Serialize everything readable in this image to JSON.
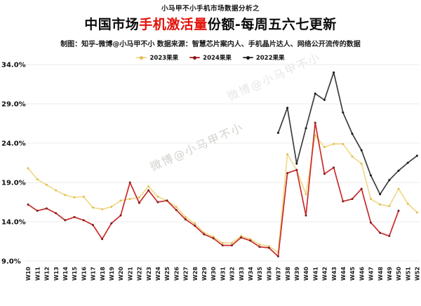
{
  "header": {
    "kicker": "小马甲不小手机市场数据分析之",
    "title_prefix": "中国市场",
    "title_highlight": "手机激活量",
    "title_suffix": "份额-每周五六七更新",
    "subtitle": "制图：知乎-微博@小马甲不小  数据来源：智慧芯片案内人、手机晶片达人、网络公开流传的数据"
  },
  "watermark": {
    "text": "微博@小马甲不小"
  },
  "chart_data": {
    "type": "line",
    "title": "中国市场手机激活量份额-每周五六七更新",
    "xlabel": "",
    "ylabel": "",
    "ylim": [
      9,
      34
    ],
    "grid": true,
    "legend_position": "top",
    "x_tick_rotation": 90,
    "y_ticks": [
      {
        "value": 9,
        "label": "9.0%"
      },
      {
        "value": 14,
        "label": "14.0%"
      },
      {
        "value": 19,
        "label": "19.0%"
      },
      {
        "value": 24,
        "label": "24.0%"
      },
      {
        "value": 29,
        "label": "29.0%"
      },
      {
        "value": 34,
        "label": "34.0%"
      }
    ],
    "categories": [
      "W10",
      "W11",
      "W12",
      "W13",
      "W14",
      "W15",
      "W16",
      "W17",
      "W18",
      "W19",
      "W20",
      "W21",
      "W22",
      "W23",
      "W24",
      "W25",
      "W26",
      "W27",
      "W28",
      "W29",
      "W30",
      "W31",
      "W32",
      "W33",
      "W34",
      "W35",
      "W36",
      "W37",
      "W38",
      "W39",
      "W40",
      "W41",
      "W42",
      "W43",
      "W44",
      "W45",
      "W46",
      "W47",
      "W48",
      "W49",
      "W50",
      "W51",
      "W52"
    ],
    "series": [
      {
        "name": "2023果果",
        "color": "#f0d98a",
        "marker_color": "#e2bd55",
        "values": [
          20.8,
          19.4,
          18.7,
          18.0,
          17.4,
          17.1,
          17.2,
          15.8,
          15.6,
          15.9,
          16.7,
          16.9,
          17.1,
          18.5,
          17.2,
          16.7,
          15.9,
          14.6,
          13.8,
          12.6,
          12.1,
          11.3,
          11.3,
          12.2,
          11.8,
          11.1,
          10.9,
          10.1,
          22.6,
          20.6,
          17.5,
          25.0,
          23.5,
          23.9,
          23.9,
          22.3,
          21.4,
          16.9,
          16.2,
          16.0,
          18.2,
          16.3,
          15.2
        ]
      },
      {
        "name": "2024果果",
        "color": "#c92b2b",
        "marker_color": "#7d1d1d",
        "values": [
          16.2,
          15.4,
          15.7,
          15.1,
          14.2,
          14.6,
          14.2,
          13.6,
          11.8,
          13.8,
          14.8,
          19.0,
          16.4,
          18.0,
          16.5,
          16.7,
          15.5,
          14.3,
          13.5,
          12.4,
          11.9,
          11.0,
          11.0,
          12.0,
          11.6,
          10.8,
          10.7,
          9.6,
          20.2,
          20.6,
          14.8,
          26.6,
          20.1,
          20.9,
          16.6,
          16.9,
          18.2,
          13.9,
          12.6,
          12.2,
          15.4,
          null,
          null
        ]
      },
      {
        "name": "2022果果",
        "color": "#3d3d3d",
        "marker_color": "#161616",
        "values": [
          null,
          null,
          null,
          null,
          null,
          null,
          null,
          null,
          null,
          null,
          null,
          null,
          null,
          null,
          null,
          null,
          null,
          null,
          null,
          null,
          null,
          null,
          null,
          null,
          null,
          null,
          null,
          25.3,
          28.5,
          21.4,
          25.9,
          30.3,
          29.5,
          33.0,
          27.9,
          25.2,
          23.1,
          19.9,
          17.5,
          19.3,
          20.5,
          21.5,
          22.4
        ]
      }
    ]
  }
}
